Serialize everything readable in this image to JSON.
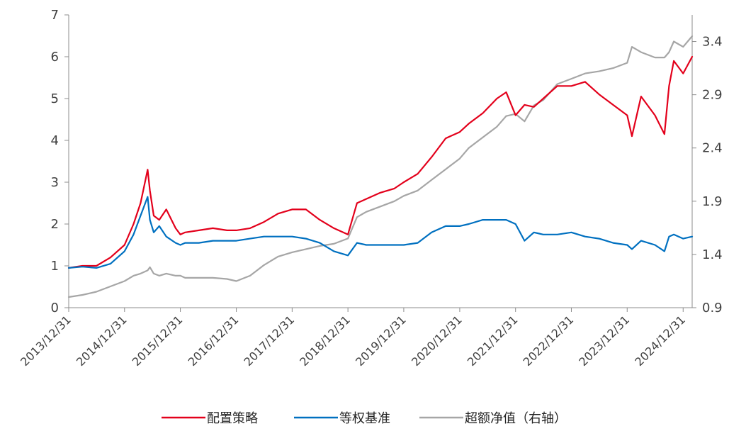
{
  "chart_data": {
    "type": "line",
    "title": "",
    "xlabel": "",
    "ylabel": "",
    "x_tick_labels": [
      "2013/12/31",
      "2014/12/31",
      "2015/12/31",
      "2016/12/31",
      "2017/12/31",
      "2018/12/31",
      "2019/12/31",
      "2020/12/31",
      "2021/12/31",
      "2022/12/31",
      "2023/12/31",
      "2024/12/31"
    ],
    "y_left": {
      "ylim": [
        0,
        7
      ],
      "ticks": [
        "0",
        "1",
        "2",
        "3",
        "4",
        "5",
        "6",
        "7"
      ]
    },
    "y_right": {
      "ylim": [
        0.9,
        3.65
      ],
      "ticks": [
        "0.9",
        "1.4",
        "1.9",
        "2.4",
        "2.9",
        "3.4"
      ]
    },
    "grid": false,
    "legend_position": "bottom",
    "x": [
      "2013-12-31",
      "2014-03-31",
      "2014-06-30",
      "2014-09-30",
      "2014-12-31",
      "2015-02-28",
      "2015-04-15",
      "2015-05-31",
      "2015-06-15",
      "2015-07-10",
      "2015-08-15",
      "2015-09-30",
      "2015-11-30",
      "2015-12-31",
      "2016-01-31",
      "2016-04-30",
      "2016-07-31",
      "2016-10-31",
      "2016-12-31",
      "2017-03-31",
      "2017-06-30",
      "2017-09-30",
      "2017-12-31",
      "2018-03-31",
      "2018-06-30",
      "2018-09-30",
      "2018-12-31",
      "2019-02-28",
      "2019-04-30",
      "2019-07-31",
      "2019-10-31",
      "2019-12-31",
      "2020-03-31",
      "2020-06-30",
      "2020-09-30",
      "2020-12-31",
      "2021-02-28",
      "2021-05-31",
      "2021-08-31",
      "2021-10-31",
      "2021-12-31",
      "2022-02-28",
      "2022-04-30",
      "2022-06-30",
      "2022-09-30",
      "2022-12-31",
      "2023-03-31",
      "2023-06-30",
      "2023-09-30",
      "2023-12-31",
      "2024-01-31",
      "2024-03-31",
      "2024-06-30",
      "2024-08-31",
      "2024-09-30",
      "2024-10-31",
      "2024-12-31",
      "2025-02-28"
    ],
    "series": [
      {
        "name": "配置策略",
        "axis": "left",
        "color": "#e3001b",
        "values": [
          0.95,
          1.0,
          1.0,
          1.2,
          1.5,
          2.0,
          2.5,
          3.3,
          2.8,
          2.2,
          2.1,
          2.35,
          1.9,
          1.75,
          1.8,
          1.85,
          1.9,
          1.85,
          1.85,
          1.9,
          2.05,
          2.25,
          2.35,
          2.35,
          2.1,
          1.9,
          1.75,
          2.5,
          2.6,
          2.75,
          2.85,
          3.0,
          3.2,
          3.6,
          4.05,
          4.2,
          4.4,
          4.65,
          5.0,
          5.15,
          4.6,
          4.85,
          4.8,
          5.0,
          5.3,
          5.3,
          5.4,
          5.1,
          4.85,
          4.6,
          4.1,
          5.05,
          4.6,
          4.15,
          5.3,
          5.9,
          5.6,
          6.0
        ]
      },
      {
        "name": "等权基准",
        "axis": "left",
        "color": "#0070c0",
        "values": [
          0.95,
          0.98,
          0.95,
          1.05,
          1.35,
          1.75,
          2.2,
          2.65,
          2.1,
          1.8,
          1.95,
          1.7,
          1.55,
          1.5,
          1.55,
          1.55,
          1.6,
          1.6,
          1.6,
          1.65,
          1.7,
          1.7,
          1.7,
          1.65,
          1.55,
          1.35,
          1.25,
          1.55,
          1.5,
          1.5,
          1.5,
          1.5,
          1.55,
          1.8,
          1.95,
          1.95,
          2.0,
          2.1,
          2.1,
          2.1,
          2.0,
          1.6,
          1.8,
          1.75,
          1.75,
          1.8,
          1.7,
          1.65,
          1.55,
          1.5,
          1.4,
          1.6,
          1.5,
          1.35,
          1.7,
          1.75,
          1.65,
          1.7
        ]
      },
      {
        "name": "超额净值（右轴）",
        "axis": "right",
        "color": "#a6a6a6",
        "values": [
          1.0,
          1.02,
          1.05,
          1.1,
          1.15,
          1.2,
          1.22,
          1.25,
          1.28,
          1.22,
          1.2,
          1.22,
          1.2,
          1.2,
          1.18,
          1.18,
          1.18,
          1.17,
          1.15,
          1.2,
          1.3,
          1.38,
          1.42,
          1.45,
          1.48,
          1.5,
          1.55,
          1.75,
          1.8,
          1.85,
          1.9,
          1.95,
          2.0,
          2.1,
          2.2,
          2.3,
          2.4,
          2.5,
          2.6,
          2.7,
          2.72,
          2.65,
          2.8,
          2.85,
          3.0,
          3.05,
          3.1,
          3.12,
          3.15,
          3.2,
          3.35,
          3.3,
          3.25,
          3.25,
          3.3,
          3.4,
          3.35,
          3.45
        ]
      }
    ]
  }
}
